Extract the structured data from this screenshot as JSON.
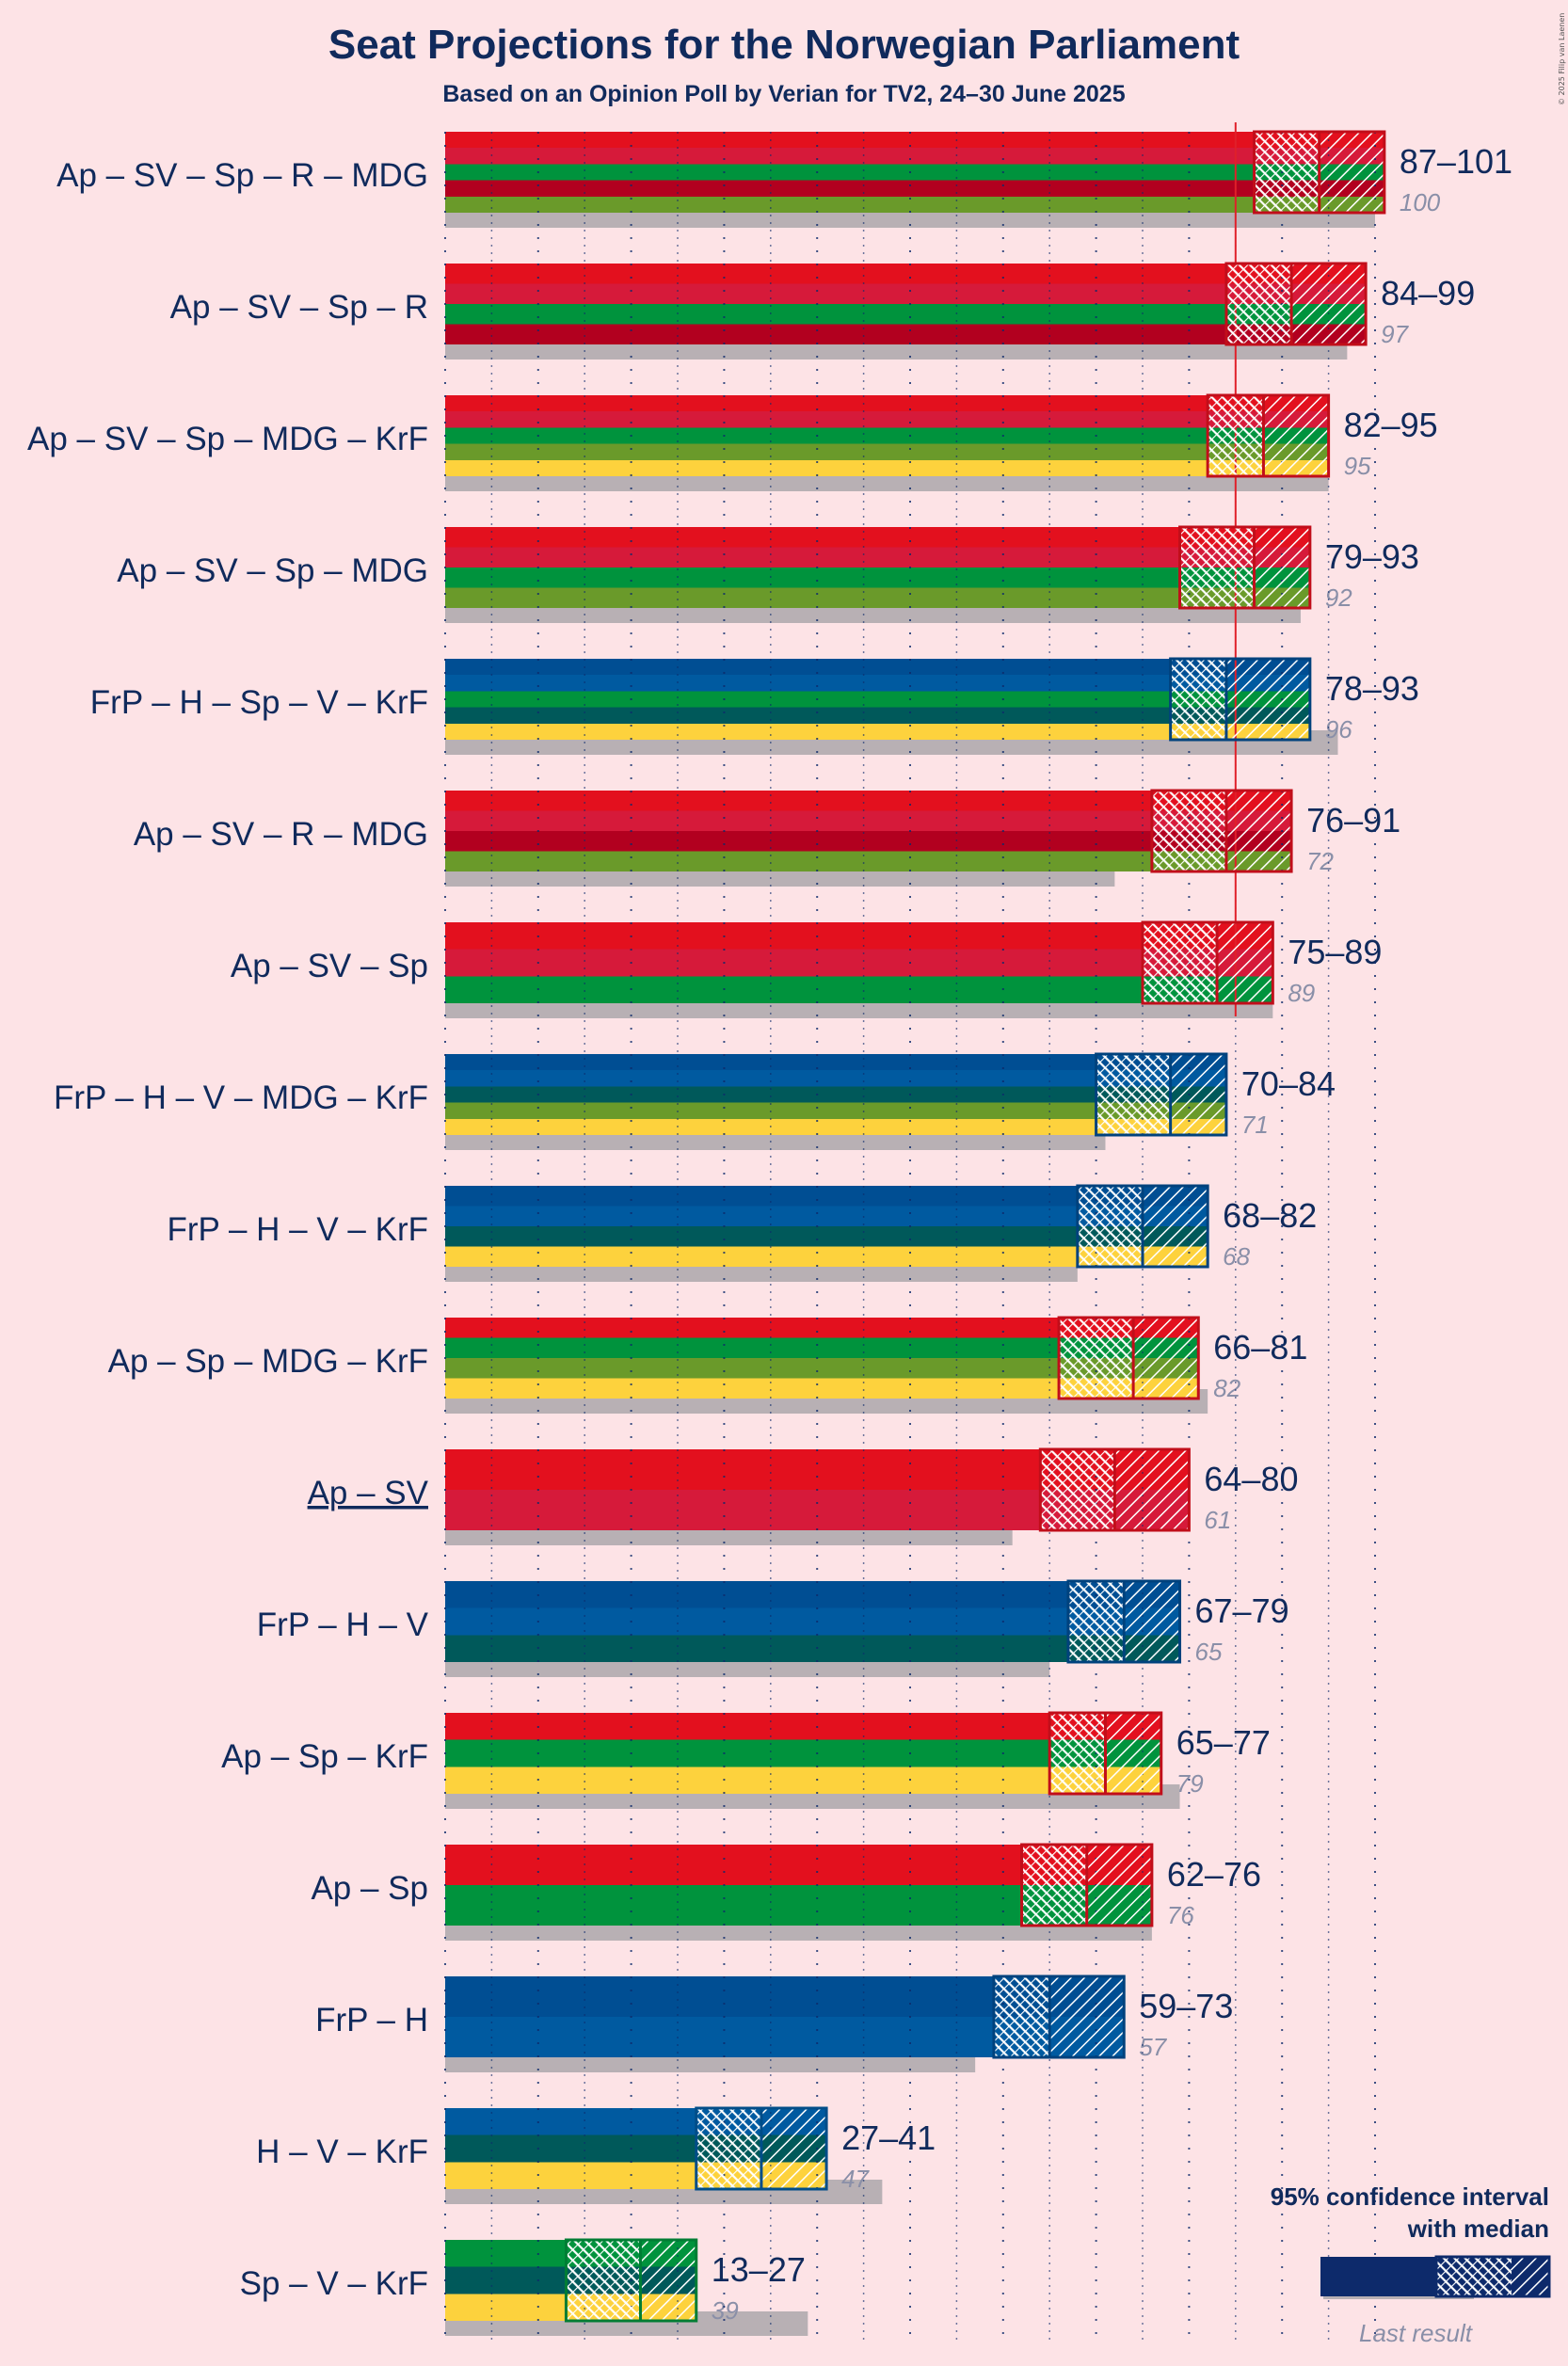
{
  "title": "Seat Projections for the Norwegian Parliament",
  "subtitle": "Based on an Opinion Poll by Verian for TV2, 24–30 June 2025",
  "copyright": "© 2025 Filip van Laenen",
  "legend": {
    "ci_label": "95% confidence interval",
    "median_label": "with median",
    "last_result_label": "Last result"
  },
  "colors": {
    "background": "#fde3e6",
    "text": "#102a5c",
    "last_result": "#b8b0b4",
    "majority_line": "#e0202a",
    "Ap": "#e3101e",
    "SV": "#d61a3a",
    "Sp": "#00933d",
    "R": "#b2001f",
    "MDG": "#6a9a2a",
    "KrF": "#fdd23d",
    "FrP": "#004e93",
    "H": "#005aa0",
    "V": "#00595a"
  },
  "chart_data": {
    "type": "bar",
    "title": "Seat Projections for the Norwegian Parliament",
    "subtitle": "Based on an Opinion Poll by Verian for TV2, 24–30 June 2025",
    "xlim": [
      0,
      101
    ],
    "majority": 85,
    "coalitions": [
      {
        "label": "Ap – SV – Sp – R – MDG",
        "parties": [
          "Ap",
          "SV",
          "Sp",
          "R",
          "MDG"
        ],
        "low": 87,
        "median": 94,
        "high": 101,
        "range_label": "87–101",
        "last": 100,
        "last_label": "100",
        "underline": false
      },
      {
        "label": "Ap – SV – Sp – R",
        "parties": [
          "Ap",
          "SV",
          "Sp",
          "R"
        ],
        "low": 84,
        "median": 91,
        "high": 99,
        "range_label": "84–99",
        "last": 97,
        "last_label": "97",
        "underline": false
      },
      {
        "label": "Ap – SV – Sp – MDG – KrF",
        "parties": [
          "Ap",
          "SV",
          "Sp",
          "MDG",
          "KrF"
        ],
        "low": 82,
        "median": 88,
        "high": 95,
        "range_label": "82–95",
        "last": 95,
        "last_label": "95",
        "underline": false
      },
      {
        "label": "Ap – SV – Sp – MDG",
        "parties": [
          "Ap",
          "SV",
          "Sp",
          "MDG"
        ],
        "low": 79,
        "median": 87,
        "high": 93,
        "range_label": "79–93",
        "last": 92,
        "last_label": "92",
        "underline": false
      },
      {
        "label": "FrP – H – Sp – V – KrF",
        "parties": [
          "FrP",
          "H",
          "Sp",
          "V",
          "KrF"
        ],
        "low": 78,
        "median": 84,
        "high": 93,
        "range_label": "78–93",
        "last": 96,
        "last_label": "96",
        "underline": false
      },
      {
        "label": "Ap – SV – R – MDG",
        "parties": [
          "Ap",
          "SV",
          "R",
          "MDG"
        ],
        "low": 76,
        "median": 84,
        "high": 91,
        "range_label": "76–91",
        "last": 72,
        "last_label": "72",
        "underline": false
      },
      {
        "label": "Ap – SV – Sp",
        "parties": [
          "Ap",
          "SV",
          "Sp"
        ],
        "low": 75,
        "median": 83,
        "high": 89,
        "range_label": "75–89",
        "last": 89,
        "last_label": "89",
        "underline": false
      },
      {
        "label": "FrP – H – V – MDG – KrF",
        "parties": [
          "FrP",
          "H",
          "V",
          "MDG",
          "KrF"
        ],
        "low": 70,
        "median": 78,
        "high": 84,
        "range_label": "70–84",
        "last": 71,
        "last_label": "71",
        "underline": false
      },
      {
        "label": "FrP – H – V – KrF",
        "parties": [
          "FrP",
          "H",
          "V",
          "KrF"
        ],
        "low": 68,
        "median": 75,
        "high": 82,
        "range_label": "68–82",
        "last": 68,
        "last_label": "68",
        "underline": false
      },
      {
        "label": "Ap – Sp – MDG – KrF",
        "parties": [
          "Ap",
          "Sp",
          "MDG",
          "KrF"
        ],
        "low": 66,
        "median": 74,
        "high": 81,
        "range_label": "66–81",
        "last": 82,
        "last_label": "82",
        "underline": false
      },
      {
        "label": "Ap – SV",
        "parties": [
          "Ap",
          "SV"
        ],
        "low": 64,
        "median": 72,
        "high": 80,
        "range_label": "64–80",
        "last": 61,
        "last_label": "61",
        "underline": true
      },
      {
        "label": "FrP – H – V",
        "parties": [
          "FrP",
          "H",
          "V"
        ],
        "low": 67,
        "median": 73,
        "high": 79,
        "range_label": "67–79",
        "last": 65,
        "last_label": "65",
        "underline": false
      },
      {
        "label": "Ap – Sp – KrF",
        "parties": [
          "Ap",
          "Sp",
          "KrF"
        ],
        "low": 65,
        "median": 71,
        "high": 77,
        "range_label": "65–77",
        "last": 79,
        "last_label": "79",
        "underline": false
      },
      {
        "label": "Ap – Sp",
        "parties": [
          "Ap",
          "Sp"
        ],
        "low": 62,
        "median": 69,
        "high": 76,
        "range_label": "62–76",
        "last": 76,
        "last_label": "76",
        "underline": false
      },
      {
        "label": "FrP – H",
        "parties": [
          "FrP",
          "H"
        ],
        "low": 59,
        "median": 65,
        "high": 73,
        "range_label": "59–73",
        "last": 57,
        "last_label": "57",
        "underline": false
      },
      {
        "label": "H – V – KrF",
        "parties": [
          "H",
          "V",
          "KrF"
        ],
        "low": 27,
        "median": 34,
        "high": 41,
        "range_label": "27–41",
        "last": 47,
        "last_label": "47",
        "underline": false
      },
      {
        "label": "Sp – V – KrF",
        "parties": [
          "Sp",
          "V",
          "KrF"
        ],
        "low": 13,
        "median": 21,
        "high": 27,
        "range_label": "13–27",
        "last": 39,
        "last_label": "39",
        "underline": false
      }
    ]
  }
}
